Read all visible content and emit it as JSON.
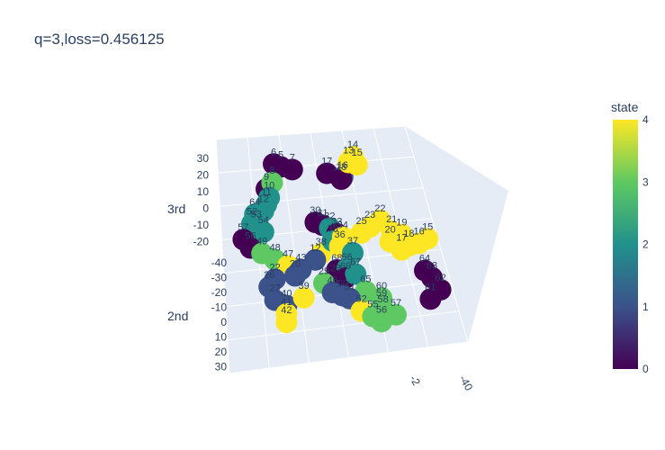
{
  "title": "q=3,loss=0.456125",
  "colorbar": {
    "title": "state",
    "ticks": [
      "0",
      "1",
      "2",
      "3",
      "4"
    ],
    "colorscale": [
      "#440154",
      "#3b528b",
      "#21918c",
      "#5ec962",
      "#fde725"
    ]
  },
  "scene": {
    "pane_color": "#e5ecf6",
    "grid_color": "#ffffff"
  },
  "chart_data": {
    "type": "scatter3d",
    "title": "q=3,loss=0.456125",
    "axes": {
      "x": {
        "title": "",
        "ticks": [
          "-40",
          "-2"
        ]
      },
      "y": {
        "title": "2nd",
        "ticks": [
          "-40",
          "-30",
          "-20",
          "-10",
          "0",
          "10",
          "20",
          "30"
        ]
      },
      "z": {
        "title": "3rd",
        "ticks": [
          "30",
          "20",
          "10",
          "0",
          "-10",
          "-20"
        ]
      }
    },
    "color_variable": "state",
    "color_range": [
      0,
      4
    ],
    "points": [
      {
        "label": "6",
        "state": 0,
        "x": -5,
        "y": 25,
        "z": 30
      },
      {
        "label": "5",
        "state": 0,
        "x": -3,
        "y": 24,
        "z": 29
      },
      {
        "label": "7",
        "state": 0,
        "x": 0,
        "y": 22,
        "z": 28
      },
      {
        "label": "14",
        "state": 4,
        "x": 15,
        "y": 10,
        "z": 32
      },
      {
        "label": "13",
        "state": 4,
        "x": 14,
        "y": 11,
        "z": 30
      },
      {
        "label": "15",
        "state": 4,
        "x": 16,
        "y": 9,
        "z": 29
      },
      {
        "label": "17",
        "state": 0,
        "x": 8,
        "y": 14,
        "z": 26
      },
      {
        "label": "18",
        "state": 0,
        "x": 12,
        "y": 12,
        "z": 24
      },
      {
        "label": "16",
        "state": 1,
        "x": 13,
        "y": 13,
        "z": 25
      },
      {
        "label": "8",
        "state": 3,
        "x": -8,
        "y": 20,
        "z": 22
      },
      {
        "label": "9",
        "state": 0,
        "x": -9,
        "y": 22,
        "z": 20
      },
      {
        "label": "10",
        "state": 2,
        "x": -10,
        "y": 18,
        "z": 16
      },
      {
        "label": "11",
        "state": 2,
        "x": -12,
        "y": 16,
        "z": 13
      },
      {
        "label": "12",
        "state": 2,
        "x": -14,
        "y": 14,
        "z": 10
      },
      {
        "label": "64",
        "state": 2,
        "x": -18,
        "y": 12,
        "z": 8
      },
      {
        "label": "52",
        "state": 2,
        "x": -20,
        "y": 10,
        "z": 4
      },
      {
        "label": "53",
        "state": 2,
        "x": -19,
        "y": 9,
        "z": 3
      },
      {
        "label": "54",
        "state": 2,
        "x": -17,
        "y": 8,
        "z": 1
      },
      {
        "label": "57",
        "state": 0,
        "x": -25,
        "y": 6,
        "z": -3
      },
      {
        "label": "56",
        "state": 0,
        "x": -23,
        "y": 5,
        "z": -6
      },
      {
        "label": "49",
        "state": 3,
        "x": -20,
        "y": 3,
        "z": -8
      },
      {
        "label": "48",
        "state": 3,
        "x": -16,
        "y": 2,
        "z": -10
      },
      {
        "label": "47",
        "state": 4,
        "x": -12,
        "y": 1,
        "z": -12
      },
      {
        "label": "30",
        "state": 0,
        "x": 0,
        "y": 6,
        "z": 6
      },
      {
        "label": "31",
        "state": 0,
        "x": 2,
        "y": 5,
        "z": 5
      },
      {
        "label": "32",
        "state": 2,
        "x": 4,
        "y": 4,
        "z": 4
      },
      {
        "label": "33",
        "state": 0,
        "x": 6,
        "y": 3,
        "z": 2
      },
      {
        "label": "34",
        "state": 4,
        "x": 8,
        "y": 3,
        "z": 1
      },
      {
        "label": "35",
        "state": 2,
        "x": 4,
        "y": 2,
        "z": -1
      },
      {
        "label": "36",
        "state": 4,
        "x": 6,
        "y": 1,
        "z": -3
      },
      {
        "label": "37",
        "state": 2,
        "x": 10,
        "y": 0,
        "z": -5
      },
      {
        "label": "38",
        "state": 4,
        "x": 0,
        "y": 2,
        "z": -6
      },
      {
        "label": "12",
        "state": 1,
        "x": -3,
        "y": 0,
        "z": -9
      },
      {
        "label": "22",
        "state": 4,
        "x": 22,
        "y": 5,
        "z": 9
      },
      {
        "label": "23",
        "state": 4,
        "x": 18,
        "y": 4,
        "z": 6
      },
      {
        "label": "21",
        "state": 4,
        "x": 25,
        "y": 3,
        "z": 5
      },
      {
        "label": "19",
        "state": 4,
        "x": 28,
        "y": 2,
        "z": 4
      },
      {
        "label": "25",
        "state": 4,
        "x": 14,
        "y": 2,
        "z": 3
      },
      {
        "label": "20",
        "state": 4,
        "x": 24,
        "y": 2,
        "z": 1
      },
      {
        "label": "18",
        "state": 4,
        "x": 30,
        "y": 1,
        "z": 0
      },
      {
        "label": "17",
        "state": 4,
        "x": 27,
        "y": 0,
        "z": -2
      },
      {
        "label": "16",
        "state": 4,
        "x": 33,
        "y": 0,
        "z": 1
      },
      {
        "label": "15",
        "state": 4,
        "x": 36,
        "y": 0,
        "z": 3
      },
      {
        "label": "66",
        "state": 2,
        "x": 6,
        "y": -4,
        "z": -12
      },
      {
        "label": "67",
        "state": 2,
        "x": 8,
        "y": -6,
        "z": -14
      },
      {
        "label": "68",
        "state": 0,
        "x": 2,
        "y": -5,
        "z": -13
      },
      {
        "label": "69",
        "state": 0,
        "x": 4,
        "y": -7,
        "z": -16
      },
      {
        "label": "43",
        "state": 1,
        "x": -10,
        "y": -4,
        "z": -14
      },
      {
        "label": "20",
        "state": 1,
        "x": -13,
        "y": -6,
        "z": -17
      },
      {
        "label": "22",
        "state": 1,
        "x": -22,
        "y": -10,
        "z": -20
      },
      {
        "label": "26",
        "state": 1,
        "x": -26,
        "y": -14,
        "z": -24
      },
      {
        "label": "27",
        "state": 1,
        "x": -27,
        "y": -20,
        "z": -30
      },
      {
        "label": "40",
        "state": 1,
        "x": -24,
        "y": -22,
        "z": -32
      },
      {
        "label": "39",
        "state": 4,
        "x": -17,
        "y": -20,
        "z": -28
      },
      {
        "label": "41",
        "state": 4,
        "x": -26,
        "y": -26,
        "z": -36
      },
      {
        "label": "42",
        "state": 4,
        "x": -28,
        "y": -30,
        "z": -40
      },
      {
        "label": "46",
        "state": 1,
        "x": -5,
        "y": -16,
        "z": -24
      },
      {
        "label": "50",
        "state": 1,
        "x": -2,
        "y": -17,
        "z": -25
      },
      {
        "label": "51",
        "state": 1,
        "x": 0,
        "y": -18,
        "z": -26
      },
      {
        "label": "52",
        "state": 4,
        "x": 2,
        "y": -22,
        "z": -31
      },
      {
        "label": "55",
        "state": 3,
        "x": 5,
        "y": -24,
        "z": -33
      },
      {
        "label": "56",
        "state": 3,
        "x": 7,
        "y": -26,
        "z": -35
      },
      {
        "label": "58",
        "state": 3,
        "x": 10,
        "y": -21,
        "z": -30
      },
      {
        "label": "59",
        "state": 3,
        "x": 11,
        "y": -18,
        "z": -27
      },
      {
        "label": "60",
        "state": 3,
        "x": 12,
        "y": -16,
        "z": -24
      },
      {
        "label": "65",
        "state": 3,
        "x": 7,
        "y": -15,
        "z": -22
      },
      {
        "label": "57",
        "state": 3,
        "x": 14,
        "y": -22,
        "z": -31
      },
      {
        "label": "61",
        "state": 0,
        "x": 30,
        "y": -14,
        "z": -22
      },
      {
        "label": "62",
        "state": 0,
        "x": 36,
        "y": -9,
        "z": -17
      },
      {
        "label": "63",
        "state": 0,
        "x": 35,
        "y": -5,
        "z": -12
      },
      {
        "label": "64",
        "state": 0,
        "x": 34,
        "y": -2,
        "z": -9
      },
      {
        "label": "28",
        "state": 0,
        "x": -1,
        "y": -10,
        "z": -18
      },
      {
        "label": "29",
        "state": 3,
        "x": -6,
        "y": -12,
        "z": -20
      }
    ]
  }
}
